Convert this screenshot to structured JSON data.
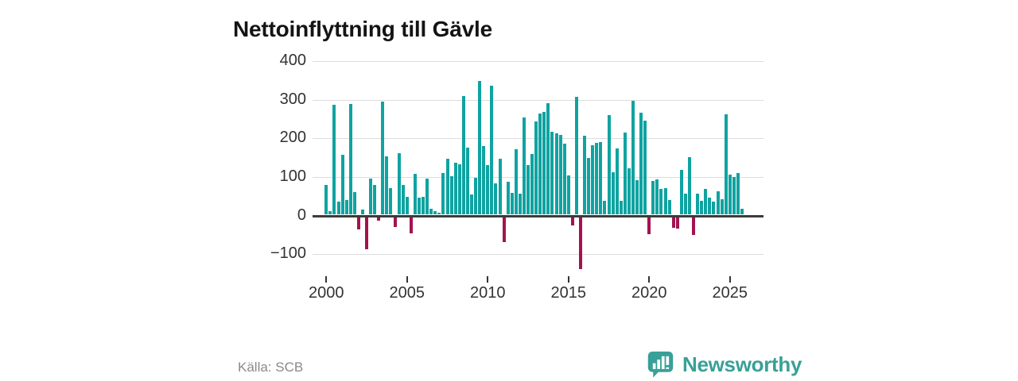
{
  "title": "Nettoinflyttning till Gävle",
  "source": "Källa: SCB",
  "branding": {
    "name": "Newsworthy",
    "color": "#38a097",
    "icon": "bar-chart-speech-bubble-icon"
  },
  "colors": {
    "positive_bar": "#0fa3a1",
    "negative_bar": "#a3134f",
    "grid": "#dcdcdc",
    "zero_line": "#3b3b3b",
    "axis_text": "#333333",
    "title_text": "#141414",
    "source_text": "#8a8a8a",
    "background": "#ffffff"
  },
  "chart_data": {
    "type": "bar",
    "title": "Nettoinflyttning till Gävle",
    "x_unit": "quarter",
    "start": "2000 Q1",
    "end": "2025 Q4",
    "quarters_per_year": 4,
    "grid": true,
    "ylim": [
      -150,
      420
    ],
    "y_ticks": [
      400,
      300,
      200,
      100,
      0,
      -100
    ],
    "y_tick_labels": [
      "400",
      "300",
      "200",
      "100",
      "0",
      "−100"
    ],
    "x_tick_years": [
      2000,
      2005,
      2010,
      2015,
      2020,
      2025
    ],
    "x_tick_labels": [
      "2000",
      "2005",
      "2010",
      "2015",
      "2020",
      "2025"
    ],
    "values": [
      78,
      10,
      285,
      34,
      155,
      39,
      288,
      59,
      -31,
      13,
      -84,
      94,
      77,
      -9,
      294,
      152,
      70,
      -26,
      159,
      77,
      47,
      -42,
      106,
      45,
      47,
      94,
      15,
      10,
      5,
      108,
      145,
      100,
      135,
      130,
      308,
      175,
      52,
      95,
      348,
      178,
      128,
      335,
      82,
      146,
      -65,
      85,
      57,
      170,
      55,
      253,
      129,
      157,
      241,
      262,
      267,
      289,
      215,
      211,
      207,
      185,
      101,
      -21,
      306,
      -135,
      204,
      148,
      181,
      186,
      189,
      36,
      259,
      111,
      172,
      36,
      213,
      121,
      295,
      90,
      265,
      243,
      -45,
      88,
      92,
      66,
      70,
      39,
      -28,
      -30,
      116,
      55,
      149,
      -46,
      55,
      36,
      66,
      45,
      35,
      60,
      40,
      260,
      105,
      98,
      108,
      16
    ]
  }
}
